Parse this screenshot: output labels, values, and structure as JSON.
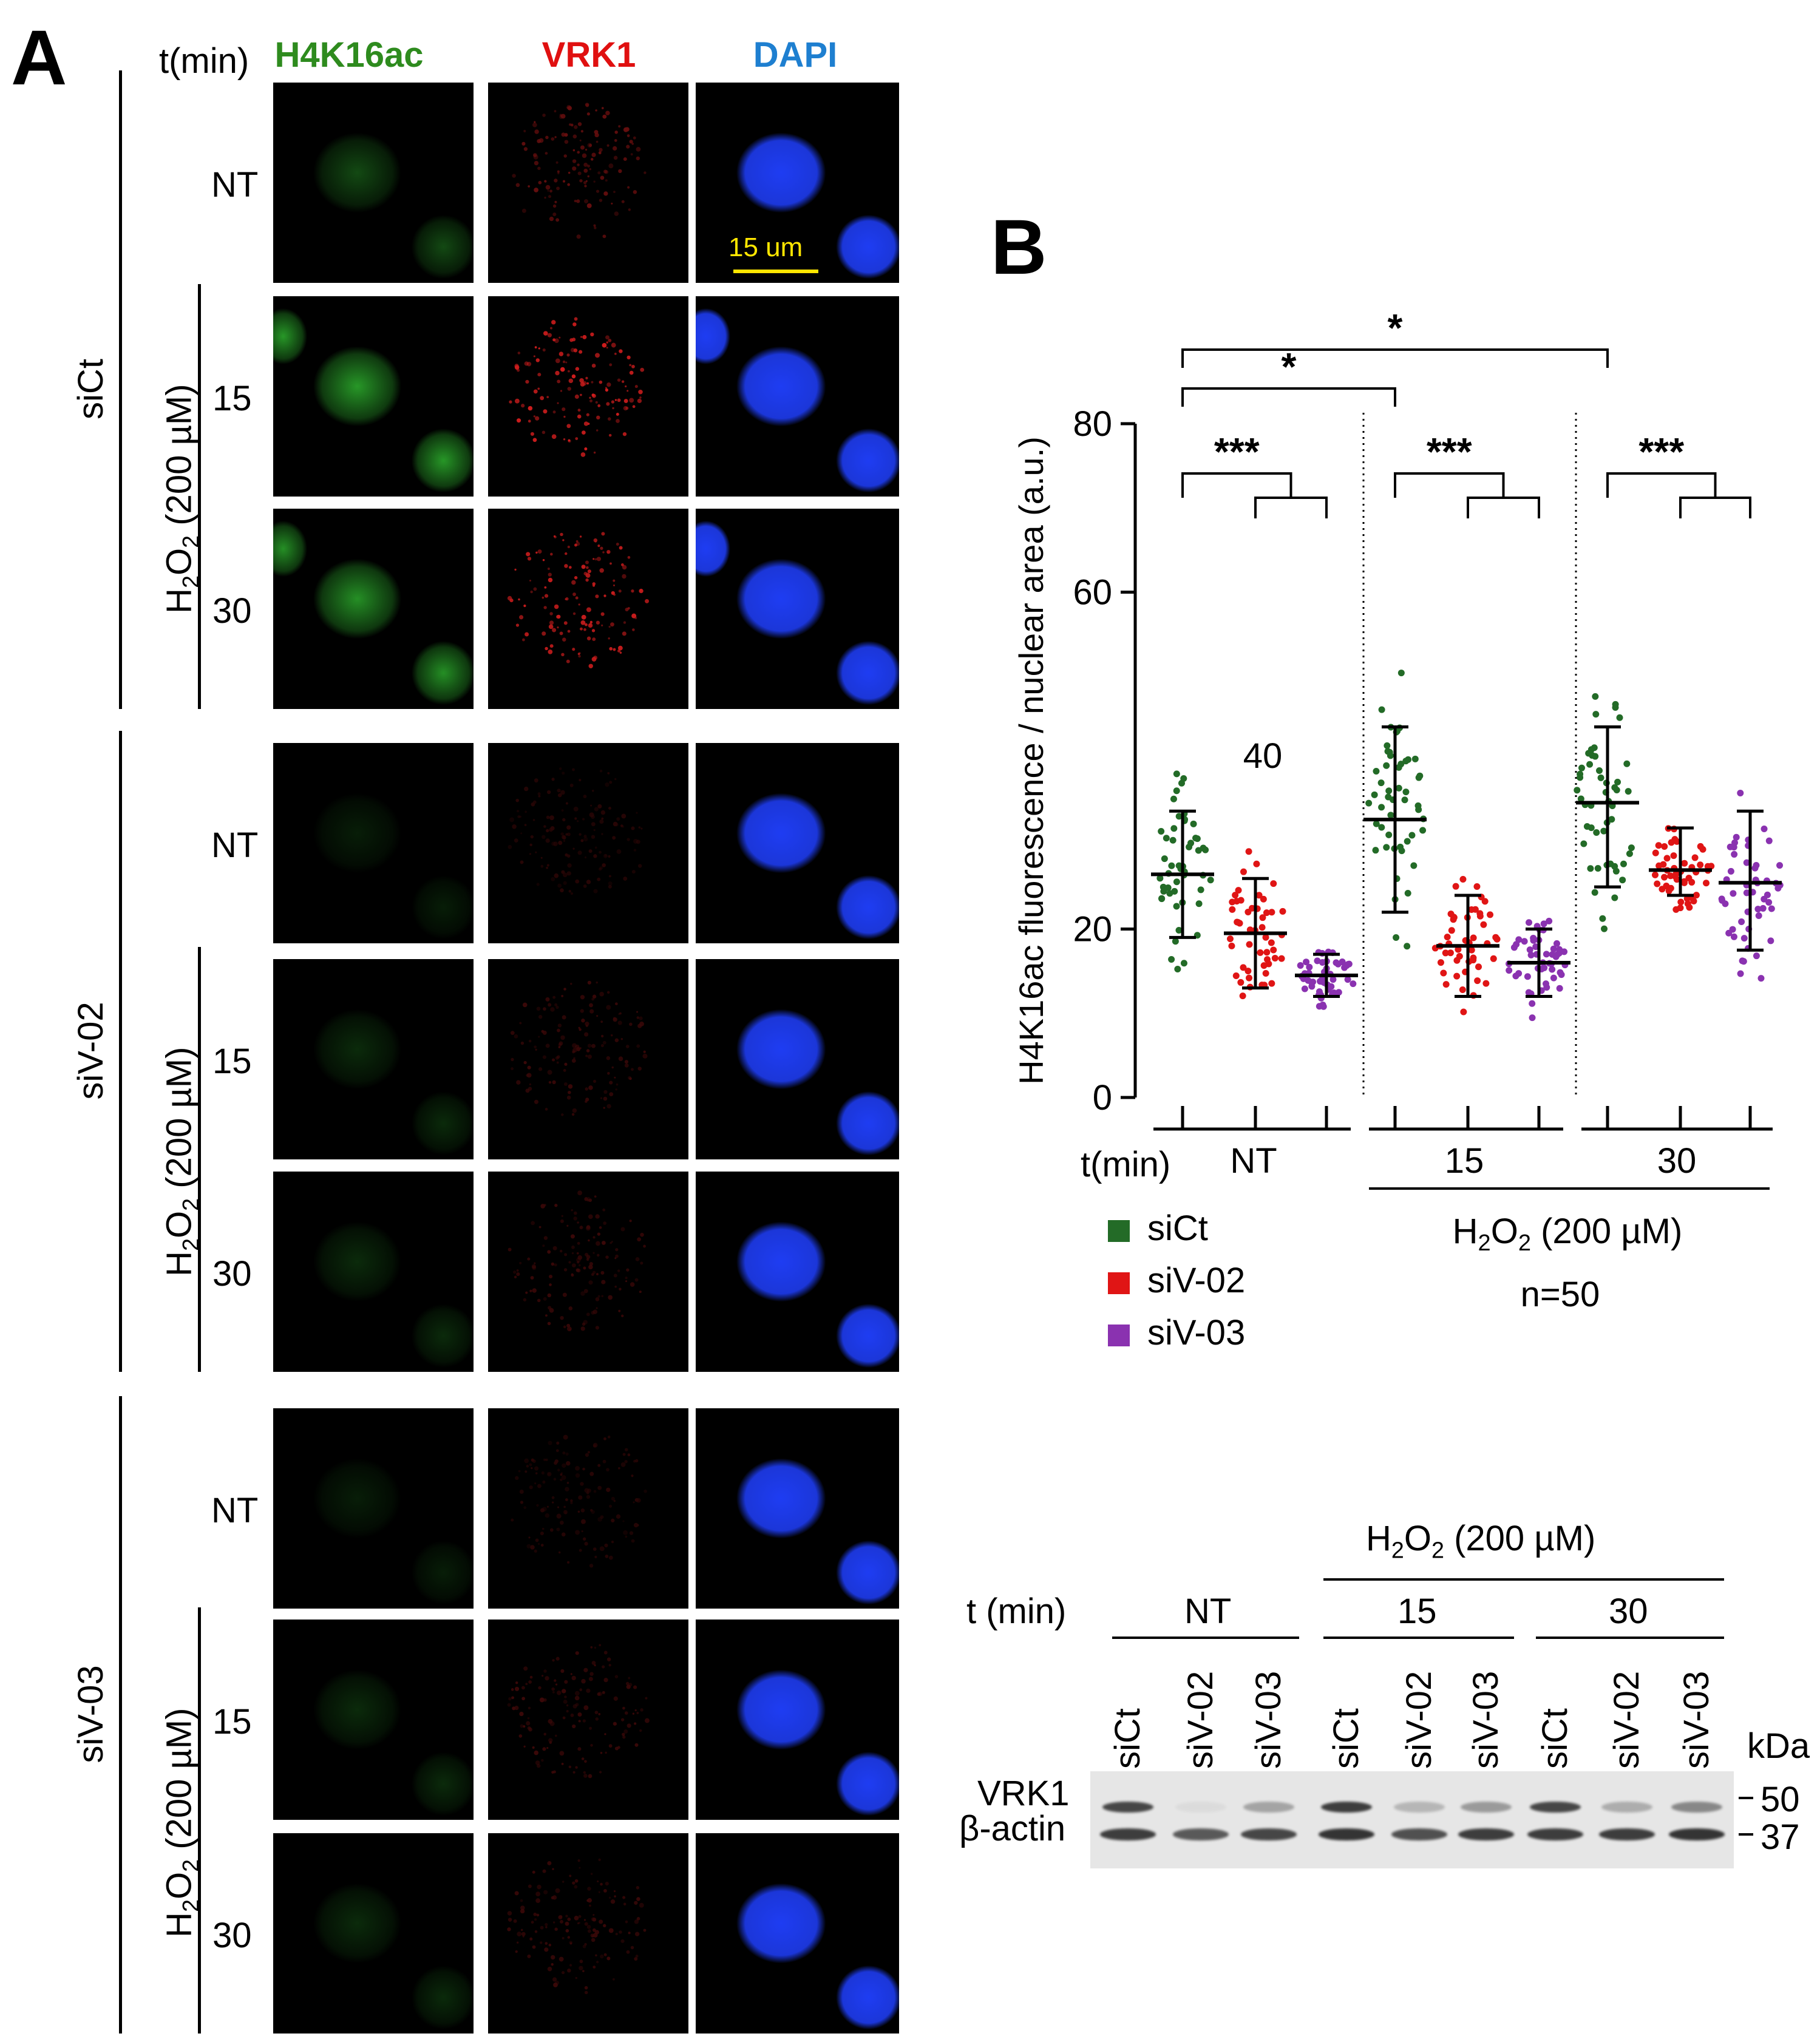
{
  "panel_a": {
    "letter": "A",
    "time_header": "t(min)",
    "channels": [
      {
        "name": "H4K16ac",
        "color": "#2e8b1e"
      },
      {
        "name": "VRK1",
        "color": "#e01010"
      },
      {
        "name": "DAPI",
        "color": "#1e7fd0"
      }
    ],
    "groups": [
      {
        "name": "siCt",
        "rows": [
          "NT",
          "15",
          "30"
        ]
      },
      {
        "name": "siV-02",
        "rows": [
          "NT",
          "15",
          "30"
        ]
      },
      {
        "name": "siV-03",
        "rows": [
          "NT",
          "15",
          "30"
        ]
      }
    ],
    "treatment_label": "H2O2 (200 µM)",
    "scale_bar": "15 um"
  },
  "panel_b": {
    "letter": "B",
    "number_label": "40",
    "n_label": "n=50",
    "treatment_label": "H2O2 (200 µM)",
    "legend": [
      {
        "name": "siCt",
        "color": "#236b27"
      },
      {
        "name": "siV-02",
        "color": "#e01515"
      },
      {
        "name": "siV-03",
        "color": "#8a32b0"
      }
    ],
    "significance": [
      "*",
      "*",
      "***",
      "***",
      "***"
    ]
  },
  "chart_data": {
    "type": "scatter",
    "title": "",
    "ylabel": "H4K16ac fluorescence / nuclear area (a.u.)",
    "xlabel": "t(min)",
    "ylim": [
      0,
      80
    ],
    "yticks": [
      0,
      20,
      60,
      80
    ],
    "groups": [
      "NT",
      "15",
      "30"
    ],
    "series": [
      {
        "name": "siCt",
        "mean": [
          26.5,
          33,
          35
        ],
        "sd_low": [
          19,
          22,
          25
        ],
        "sd_high": [
          34,
          44,
          44
        ]
      },
      {
        "name": "siV-02",
        "mean": [
          19.5,
          18,
          27
        ],
        "sd_low": [
          13,
          12,
          24
        ],
        "sd_high": [
          26,
          24,
          32
        ]
      },
      {
        "name": "siV-03",
        "mean": [
          14.5,
          16,
          25.5
        ],
        "sd_low": [
          12,
          12,
          17.5
        ],
        "sd_high": [
          17,
          20,
          34
        ]
      }
    ],
    "n": 50
  },
  "blot": {
    "time_header": "t (min)",
    "treatment_label": "H2O2 (200 µM)",
    "time_groups": [
      "NT",
      "15",
      "30"
    ],
    "lanes": [
      "siCt",
      "siV-02",
      "siV-03",
      "siCt",
      "siV-02",
      "siV-03",
      "siCt",
      "siV-02",
      "siV-03"
    ],
    "kda_label": "kDa",
    "proteins": [
      "VRK1",
      "β-actin"
    ],
    "markers": [
      "50",
      "37"
    ],
    "vrk1_intensity": [
      0.85,
      0.05,
      0.35,
      0.9,
      0.25,
      0.4,
      0.85,
      0.3,
      0.5
    ],
    "actin_intensity": [
      0.9,
      0.75,
      0.85,
      0.95,
      0.8,
      0.9,
      0.9,
      0.9,
      0.95
    ]
  }
}
